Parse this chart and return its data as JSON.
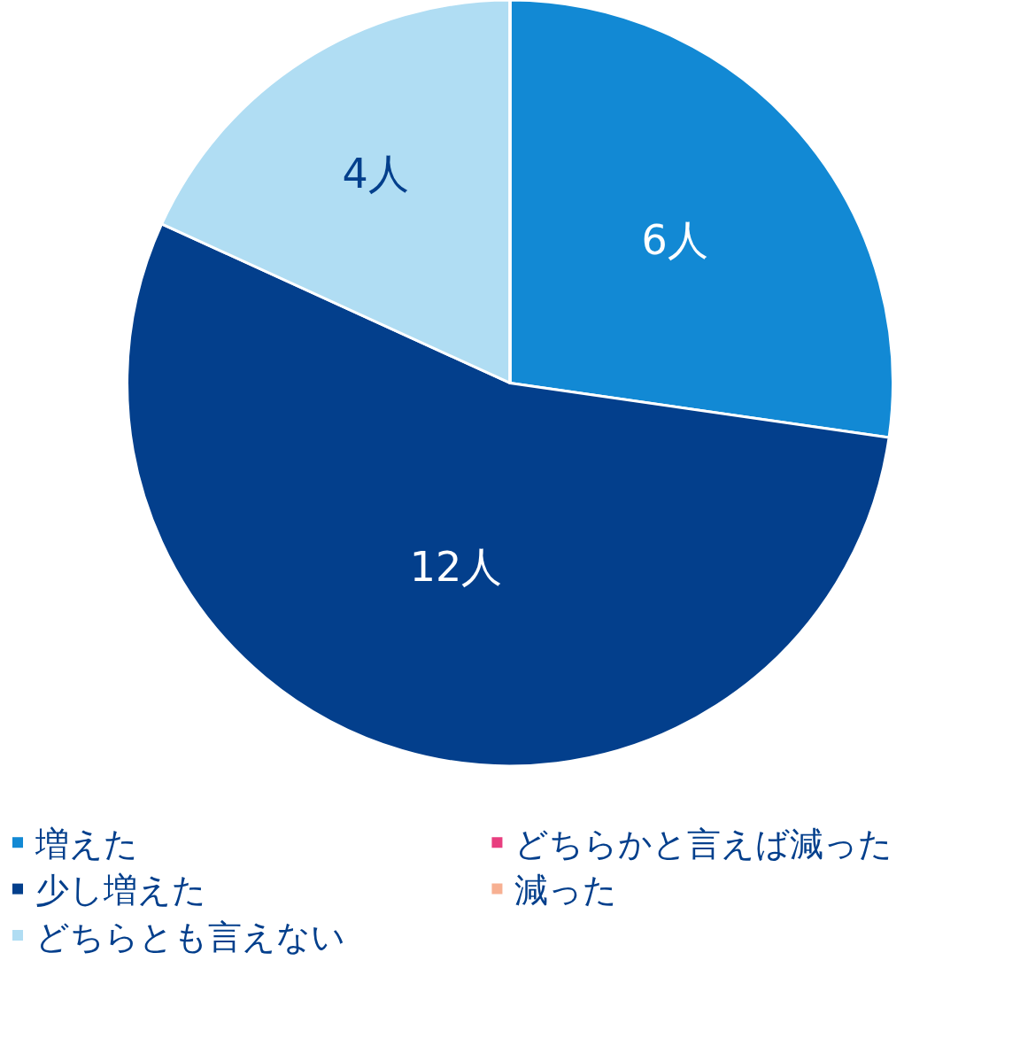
{
  "chart_data": {
    "type": "pie",
    "categories": [
      "増えた",
      "少し増えた",
      "どちらとも言えない",
      "どちらかと言えば減った",
      "減った"
    ],
    "values": [
      6,
      12,
      4,
      0,
      0
    ],
    "value_labels": [
      "6人",
      "12人",
      "4人",
      null,
      null
    ],
    "colors": [
      "#1289d4",
      "#033f8c",
      "#b0ddf3",
      "#e83e7f",
      "#f7b092"
    ],
    "legend": "bottom"
  }
}
